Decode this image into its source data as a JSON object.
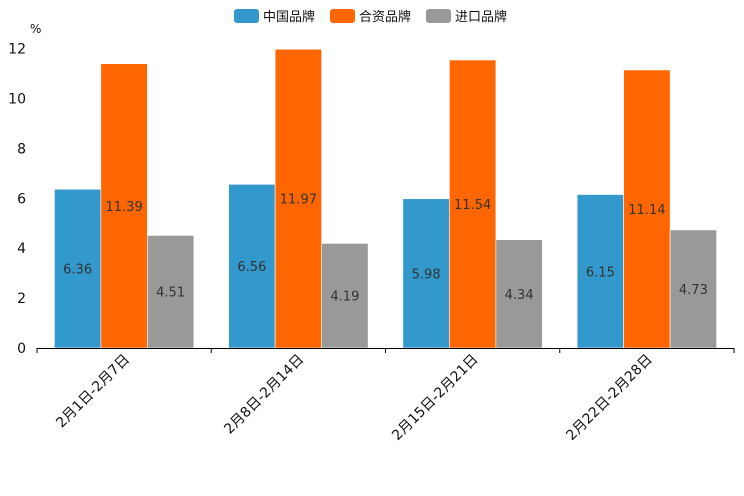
{
  "chart_data": {
    "type": "bar",
    "title": "",
    "ylabel": "%",
    "xlabel": "",
    "ylim": [
      0,
      12
    ],
    "yticks": [
      0,
      2,
      4,
      6,
      8,
      10,
      12
    ],
    "categories": [
      "2月1日-2月7日",
      "2月8日-2月14日",
      "2月15日-2月21日",
      "2月22日-2月28日"
    ],
    "series": [
      {
        "name": "中国品牌",
        "color": "#3399cc",
        "values": [
          6.36,
          6.56,
          5.98,
          6.15
        ]
      },
      {
        "name": "合资品牌",
        "color": "#ff6600",
        "values": [
          11.39,
          11.97,
          11.54,
          11.14
        ]
      },
      {
        "name": "进口品牌",
        "color": "#999999",
        "values": [
          4.51,
          4.19,
          4.34,
          4.73
        ]
      }
    ],
    "legend_position": "top-center",
    "grid": false
  }
}
